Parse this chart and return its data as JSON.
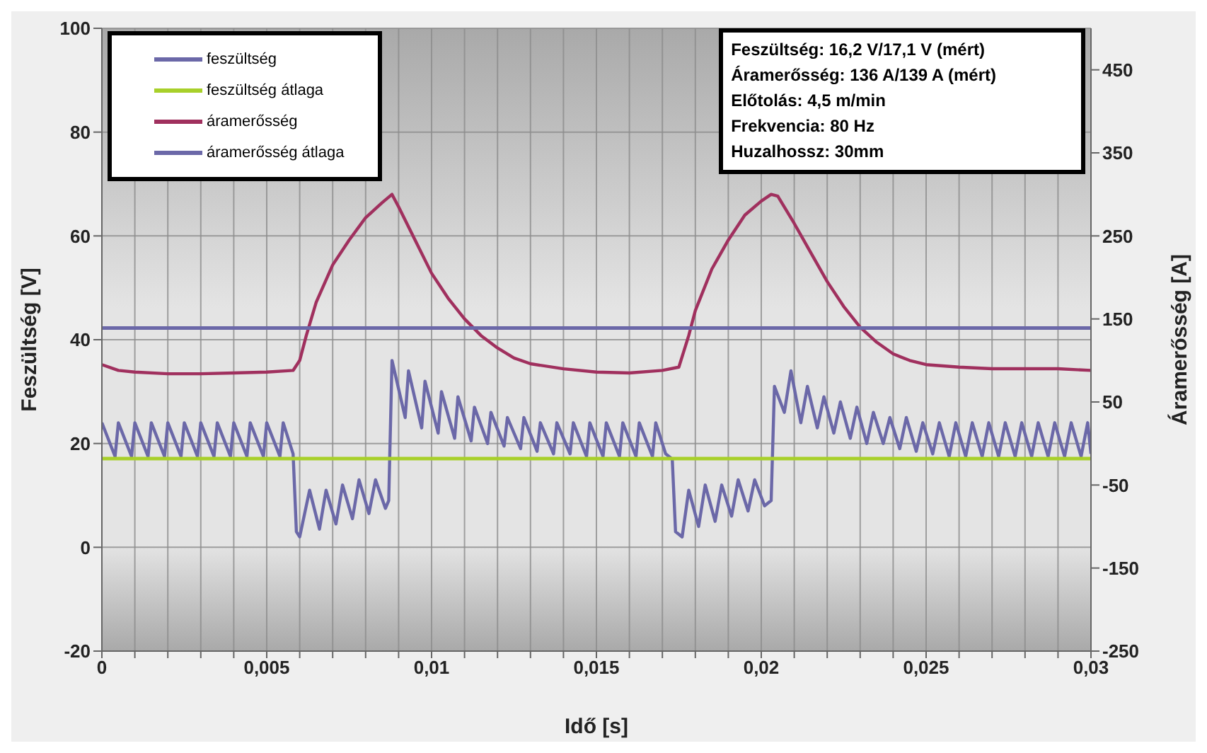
{
  "chart_data": {
    "type": "line",
    "xlabel": "Idő [s]",
    "ylabel": "Feszültség [V]",
    "y2label": "Áramerősség [A]",
    "xlim": [
      0,
      0.03
    ],
    "xticks": [
      {
        "value": 0,
        "label": "0"
      },
      {
        "value": 0.001,
        "label": null
      },
      {
        "value": 0.002,
        "label": null
      },
      {
        "value": 0.003,
        "label": null
      },
      {
        "value": 0.004,
        "label": null
      },
      {
        "value": 0.005,
        "label": "0,005"
      },
      {
        "value": 0.006,
        "label": null
      },
      {
        "value": 0.007,
        "label": null
      },
      {
        "value": 0.008,
        "label": null
      },
      {
        "value": 0.009,
        "label": null
      },
      {
        "value": 0.01,
        "label": "0,01"
      },
      {
        "value": 0.011,
        "label": null
      },
      {
        "value": 0.012,
        "label": null
      },
      {
        "value": 0.013,
        "label": null
      },
      {
        "value": 0.014,
        "label": null
      },
      {
        "value": 0.015,
        "label": "0,015"
      },
      {
        "value": 0.016,
        "label": null
      },
      {
        "value": 0.017,
        "label": null
      },
      {
        "value": 0.018,
        "label": null
      },
      {
        "value": 0.019,
        "label": null
      },
      {
        "value": 0.02,
        "label": "0,02"
      },
      {
        "value": 0.021,
        "label": null
      },
      {
        "value": 0.022,
        "label": null
      },
      {
        "value": 0.023,
        "label": null
      },
      {
        "value": 0.024,
        "label": null
      },
      {
        "value": 0.025,
        "label": "0,025"
      },
      {
        "value": 0.026,
        "label": null
      },
      {
        "value": 0.027,
        "label": null
      },
      {
        "value": 0.028,
        "label": null
      },
      {
        "value": 0.029,
        "label": null
      },
      {
        "value": 0.03,
        "label": "0,03"
      }
    ],
    "ylim": [
      -20,
      100
    ],
    "yticks": [
      -20,
      0,
      20,
      40,
      60,
      80,
      100
    ],
    "y2lim": [
      -250,
      500
    ],
    "y2ticks": [
      -250,
      -150,
      -50,
      50,
      150,
      250,
      350,
      450
    ],
    "grid": true,
    "legend": "top left",
    "marker": "none",
    "series": [
      {
        "name": "feszültség",
        "color": "#6b68a8",
        "axis": "y",
        "x": [
          0,
          0.0004,
          0.0005,
          0.0009,
          0.001,
          0.0014,
          0.0015,
          0.0019,
          0.002,
          0.0024,
          0.0025,
          0.0029,
          0.003,
          0.0034,
          0.0035,
          0.0039,
          0.004,
          0.0044,
          0.0045,
          0.0049,
          0.005,
          0.0054,
          0.0055,
          0.0058,
          0.0059,
          0.006,
          0.0063,
          0.0066,
          0.0068,
          0.0071,
          0.0073,
          0.0076,
          0.0078,
          0.0081,
          0.0083,
          0.0086,
          0.0087,
          0.0088,
          0.0092,
          0.0093,
          0.0097,
          0.0098,
          0.0102,
          0.0103,
          0.0107,
          0.0108,
          0.0112,
          0.0113,
          0.0117,
          0.0118,
          0.0122,
          0.0123,
          0.0127,
          0.0128,
          0.0132,
          0.0133,
          0.0137,
          0.0138,
          0.0142,
          0.0143,
          0.0147,
          0.0148,
          0.0152,
          0.0153,
          0.0157,
          0.0158,
          0.0162,
          0.0163,
          0.0167,
          0.0168,
          0.0171,
          0.0173,
          0.0174,
          0.0176,
          0.0178,
          0.0181,
          0.0183,
          0.0186,
          0.0188,
          0.0191,
          0.0193,
          0.0196,
          0.0198,
          0.0201,
          0.0203,
          0.0204,
          0.0207,
          0.0209,
          0.0212,
          0.0214,
          0.0217,
          0.0219,
          0.0222,
          0.0224,
          0.0227,
          0.0229,
          0.0232,
          0.0234,
          0.0237,
          0.0239,
          0.0242,
          0.0244,
          0.0247,
          0.0249,
          0.0252,
          0.0254,
          0.0257,
          0.0259,
          0.0262,
          0.0264,
          0.0267,
          0.0269,
          0.0272,
          0.0274,
          0.0277,
          0.0279,
          0.0282,
          0.0284,
          0.0287,
          0.0289,
          0.0292,
          0.0294,
          0.0297,
          0.0299,
          0.03
        ],
        "values": [
          24,
          17.5,
          24,
          17.5,
          24,
          17.5,
          24,
          17.5,
          24,
          17.5,
          24,
          17.5,
          24,
          17.5,
          24,
          17.5,
          24,
          17.5,
          24,
          17.5,
          24,
          17.5,
          24,
          18,
          3,
          2,
          11,
          3.5,
          11,
          4.5,
          12,
          5.5,
          13,
          6.5,
          13,
          7.5,
          9,
          36,
          25,
          34,
          23,
          32,
          22,
          30,
          21,
          29,
          20.5,
          27,
          20,
          26,
          19.5,
          25,
          19,
          25,
          18.5,
          24,
          18,
          24,
          18,
          24,
          17.5,
          24,
          17.5,
          24,
          17.5,
          24,
          17.5,
          24,
          17.5,
          24,
          18,
          17,
          3,
          2,
          11,
          4,
          12,
          5,
          12,
          6,
          13,
          7,
          13,
          8,
          9,
          31,
          26,
          34,
          24,
          31,
          23,
          29,
          22,
          28,
          21,
          27,
          20,
          26,
          20,
          25,
          19,
          25,
          18.5,
          24,
          18,
          24,
          17.5,
          24,
          17.5,
          24,
          17.5,
          24,
          17.5,
          24,
          17.5,
          24,
          17.5,
          24,
          17.5,
          24,
          17.5,
          24,
          17.5,
          24,
          18
        ]
      },
      {
        "name": "feszültség átlaga",
        "color": "#a8d02a",
        "axis": "y",
        "x": [
          0,
          0.03
        ],
        "values": [
          17.1,
          17.1
        ]
      },
      {
        "name": "áramerősség",
        "color": "#a0305e",
        "axis": "y2",
        "x": [
          0,
          0.0005,
          0.001,
          0.002,
          0.003,
          0.004,
          0.005,
          0.0058,
          0.006,
          0.0062,
          0.0065,
          0.007,
          0.0075,
          0.008,
          0.0085,
          0.0088,
          0.009,
          0.0095,
          0.01,
          0.0105,
          0.011,
          0.0115,
          0.012,
          0.0125,
          0.013,
          0.014,
          0.015,
          0.016,
          0.017,
          0.0175,
          0.0178,
          0.018,
          0.0185,
          0.019,
          0.0195,
          0.02,
          0.0203,
          0.0205,
          0.021,
          0.0215,
          0.022,
          0.0225,
          0.023,
          0.0235,
          0.024,
          0.0245,
          0.025,
          0.026,
          0.027,
          0.028,
          0.029,
          0.03
        ],
        "values": [
          95,
          88,
          86,
          84,
          84,
          85,
          86,
          88,
          100,
          130,
          170,
          215,
          245,
          272,
          290,
          300,
          285,
          245,
          205,
          175,
          150,
          130,
          115,
          103,
          96,
          90,
          86,
          85,
          88,
          92,
          130,
          160,
          210,
          245,
          275,
          292,
          300,
          298,
          265,
          230,
          195,
          165,
          140,
          122,
          108,
          100,
          95,
          92,
          90,
          90,
          90,
          88
        ]
      },
      {
        "name": "áramerősség átlaga",
        "color": "#6b68a8",
        "axis": "y2",
        "x": [
          0,
          0.03
        ],
        "values": [
          139,
          139
        ]
      }
    ],
    "annotations": [
      "Feszültség: 16,2 V/17,1 V (mért)",
      "Áramerősség: 136 A/139 A (mért)",
      "Előtolás: 4,5 m/min",
      "Frekvencia: 80 Hz",
      "Huzalhossz: 30mm"
    ]
  }
}
